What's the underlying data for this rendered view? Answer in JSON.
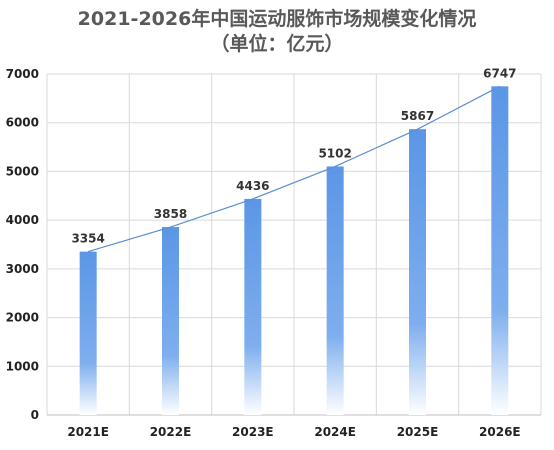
{
  "chart_data": {
    "type": "bar",
    "title": "2021-2026年中国运动服饰市场规模变化情况",
    "subtitle": "（单位：亿元）",
    "categories": [
      "2021E",
      "2022E",
      "2023E",
      "2024E",
      "2025E",
      "2026E"
    ],
    "values": [
      3354,
      3858,
      4436,
      5102,
      5867,
      6747
    ],
    "ylim": [
      0,
      7000
    ],
    "yticks": [
      0,
      1000,
      2000,
      3000,
      4000,
      5000,
      6000,
      7000
    ],
    "grid": true,
    "trendline": true,
    "colors": {
      "bar_top": "#5b96e6",
      "bar_bottom": "#ffffff",
      "trendline": "#5b8fd4",
      "grid": "#d9d9d9"
    }
  }
}
